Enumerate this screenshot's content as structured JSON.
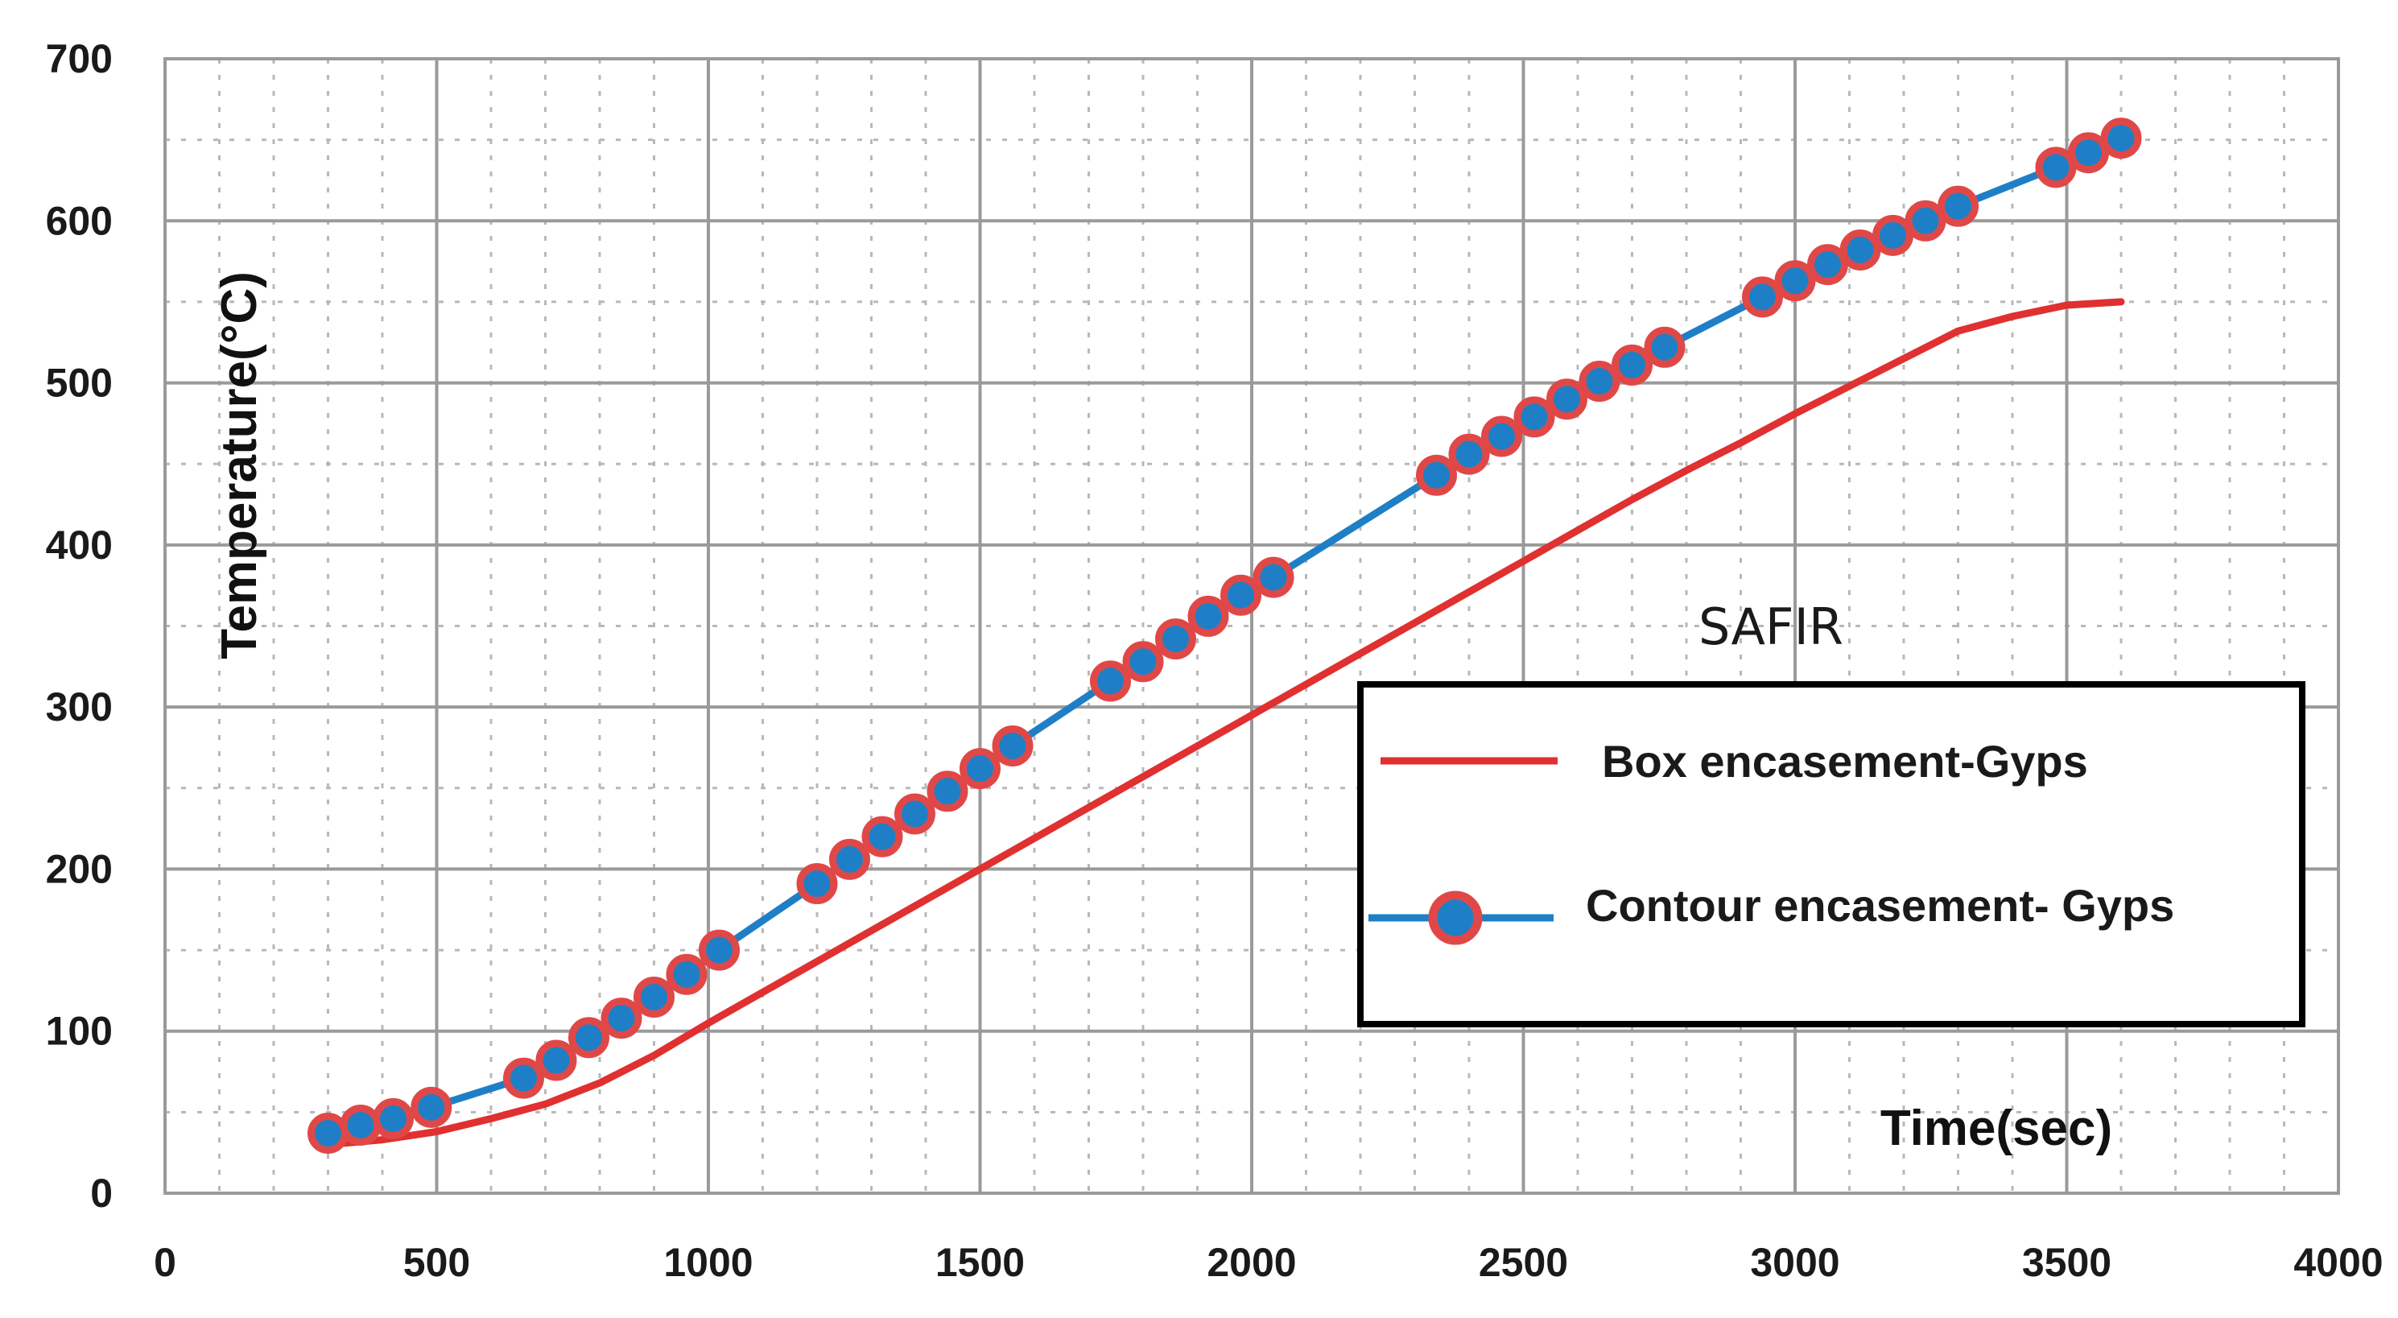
{
  "chart_data": {
    "type": "line",
    "xlabel": "Time(sec)",
    "ylabel": "Temperature(°C)",
    "annotation": "SAFIR",
    "xlim": [
      0,
      4000
    ],
    "ylim": [
      0,
      700
    ],
    "x_ticks": [
      0,
      500,
      1000,
      1500,
      2000,
      2500,
      3000,
      3500,
      4000
    ],
    "y_ticks": [
      0,
      100,
      200,
      300,
      400,
      500,
      600,
      700
    ],
    "grid": true,
    "legend_position": "right",
    "series": [
      {
        "name": "Box encasement-Gyps",
        "color": "#e03030",
        "marker": "none",
        "x": [
          300,
          400,
          500,
          600,
          700,
          800,
          900,
          1000,
          1100,
          1200,
          1300,
          1400,
          1500,
          1600,
          1700,
          1800,
          1900,
          2000,
          2100,
          2200,
          2300,
          2400,
          2500,
          2600,
          2700,
          2800,
          2900,
          3000,
          3100,
          3200,
          3300,
          3400,
          3500,
          3600
        ],
        "y": [
          30,
          33,
          38,
          46,
          55,
          68,
          85,
          105,
          124,
          143,
          162,
          181,
          200,
          219,
          238,
          257,
          276,
          295,
          314,
          333,
          352,
          371,
          390,
          409,
          428,
          446,
          463,
          481,
          498,
          515,
          532,
          541,
          548,
          550
        ]
      },
      {
        "name": "Contour encasement- Gyps",
        "color": "#1f7fc6",
        "marker_color": "#e04848",
        "marker": "circle",
        "x": [
          300,
          360,
          420,
          490,
          660,
          720,
          780,
          840,
          900,
          960,
          1020,
          1200,
          1260,
          1320,
          1380,
          1440,
          1500,
          1560,
          1740,
          1800,
          1860,
          1920,
          1980,
          2040,
          2340,
          2400,
          2460,
          2520,
          2580,
          2640,
          2700,
          2760,
          2940,
          3000,
          3060,
          3120,
          3180,
          3240,
          3300,
          3480,
          3540,
          3600
        ],
        "y": [
          37,
          42,
          46,
          53,
          71,
          82,
          96,
          108,
          121,
          135,
          150,
          191,
          206,
          220,
          234,
          248,
          262,
          276,
          316,
          328,
          342,
          356,
          369,
          380,
          443,
          456,
          467,
          479,
          490,
          501,
          511,
          522,
          553,
          563,
          573,
          582,
          591,
          600,
          609,
          633,
          642,
          651
        ]
      }
    ]
  }
}
